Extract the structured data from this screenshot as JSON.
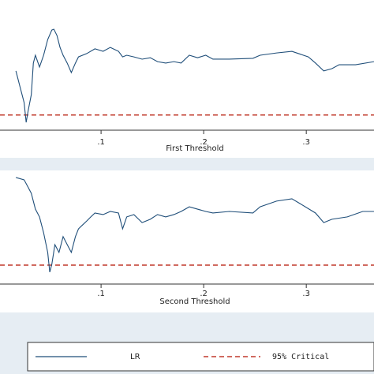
{
  "chart_data": [
    {
      "type": "line",
      "xlabel": "First Threshold",
      "x": [
        0.017,
        0.021,
        0.025,
        0.027,
        0.029,
        0.032,
        0.034,
        0.036,
        0.04,
        0.044,
        0.048,
        0.052,
        0.054,
        0.057,
        0.06,
        0.063,
        0.067,
        0.071,
        0.075,
        0.078,
        0.086,
        0.094,
        0.102,
        0.109,
        0.117,
        0.121,
        0.125,
        0.132,
        0.14,
        0.148,
        0.155,
        0.163,
        0.171,
        0.178,
        0.186,
        0.194,
        0.202,
        0.209,
        0.225,
        0.248,
        0.255,
        0.271,
        0.286,
        0.302,
        0.309,
        0.317,
        0.325,
        0.332,
        0.348,
        0.366
      ],
      "series": [
        {
          "name": "LR",
          "color": "#1f4e79",
          "values": [
            28.7,
            21.0,
            13.4,
            3.8,
            9.6,
            17.2,
            32.5,
            36.3,
            30.6,
            36.3,
            43.9,
            48.5,
            48.9,
            45.9,
            40.1,
            36.3,
            32.5,
            27.9,
            32.5,
            35.5,
            37.1,
            39.4,
            38.2,
            40.1,
            38.2,
            35.5,
            36.3,
            35.5,
            34.4,
            35.1,
            33.2,
            32.5,
            33.2,
            32.5,
            36.3,
            35.1,
            36.3,
            34.4,
            34.4,
            34.8,
            36.3,
            37.4,
            38.2,
            35.5,
            32.5,
            28.7,
            29.8,
            31.7,
            31.7,
            33.2
          ]
        }
      ],
      "critical": {
        "name": "95% Critical",
        "value": 7.35,
        "color": "#c0392b"
      },
      "xlim": [
        0.0015,
        0.366
      ],
      "ylim": [
        0,
        60
      ],
      "xticks": [
        {
          "value": 0.1,
          "label": ".1"
        },
        {
          "value": 0.2,
          "label": ".2"
        },
        {
          "value": 0.3,
          "label": ".3"
        }
      ]
    },
    {
      "type": "line",
      "xlabel": "Second Threshold",
      "x": [
        0.017,
        0.025,
        0.028,
        0.032,
        0.036,
        0.04,
        0.044,
        0.048,
        0.05,
        0.052,
        0.055,
        0.059,
        0.063,
        0.067,
        0.071,
        0.075,
        0.078,
        0.082,
        0.086,
        0.09,
        0.094,
        0.102,
        0.109,
        0.117,
        0.121,
        0.125,
        0.132,
        0.14,
        0.148,
        0.155,
        0.163,
        0.171,
        0.178,
        0.186,
        0.194,
        0.202,
        0.209,
        0.225,
        0.248,
        0.255,
        0.271,
        0.286,
        0.294,
        0.309,
        0.317,
        0.325,
        0.34,
        0.355,
        0.366
      ],
      "series": [
        {
          "color": "#1f4e79",
          "values": [
            41.1,
            40.2,
            38.0,
            35.0,
            28.9,
            25.9,
            19.8,
            12.2,
            4.6,
            7.6,
            15.2,
            12.2,
            18.3,
            15.2,
            12.2,
            18.3,
            21.3,
            22.8,
            24.3,
            25.9,
            27.4,
            26.8,
            28.0,
            27.4,
            21.3,
            25.9,
            26.8,
            23.7,
            25.0,
            26.8,
            25.9,
            26.8,
            28.0,
            29.8,
            28.9,
            28.0,
            27.4,
            28.0,
            27.4,
            29.8,
            32.0,
            32.9,
            31.0,
            27.4,
            23.7,
            25.0,
            25.9,
            28.0,
            28.0
          ]
        }
      ],
      "critical": {
        "value": 7.3,
        "color": "#c0392b"
      },
      "xlim": [
        0.0015,
        0.366
      ],
      "ylim": [
        0,
        42
      ],
      "xticks": [
        {
          "value": 0.1,
          "label": ".1"
        },
        {
          "value": 0.2,
          "label": ".2"
        },
        {
          "value": 0.3,
          "label": ".3"
        }
      ]
    }
  ]
}
